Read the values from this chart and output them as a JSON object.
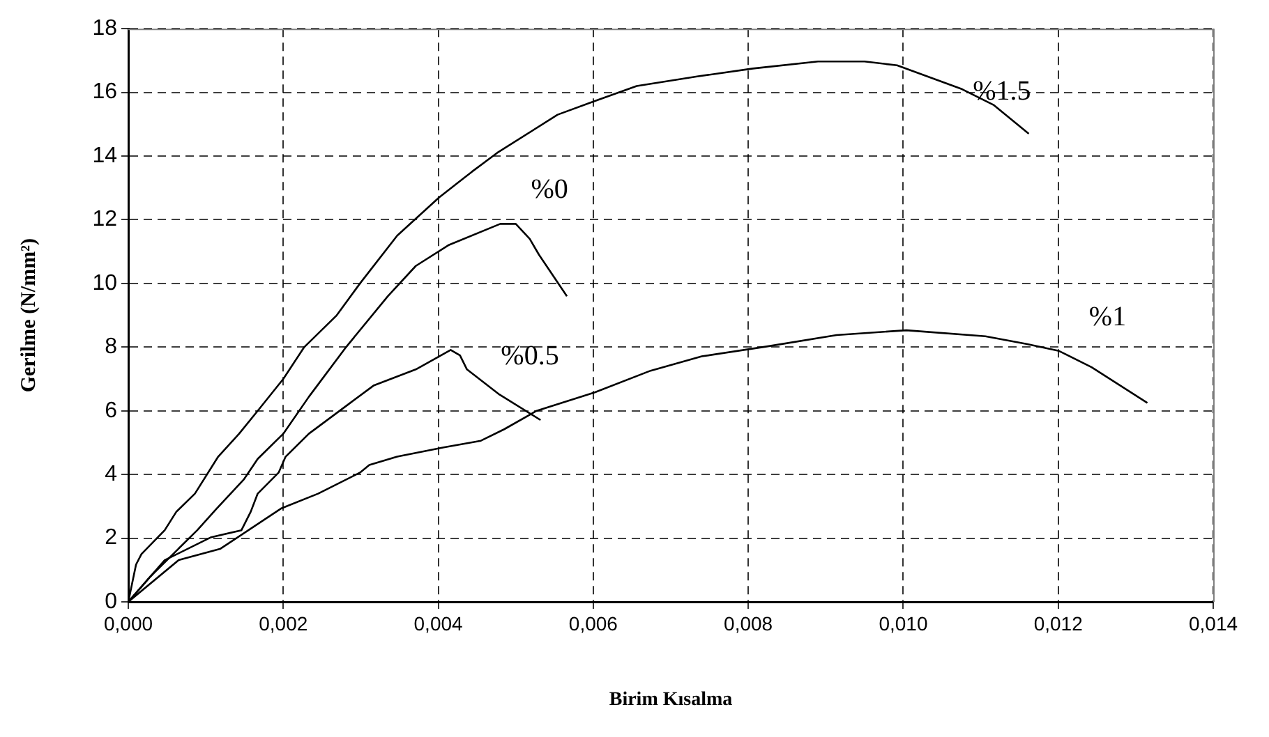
{
  "chart_data": {
    "type": "line",
    "xlabel": "Birim Kısalma",
    "ylabel": "Gerilme (N/mm²)",
    "xlim": [
      0,
      0.014
    ],
    "ylim": [
      0,
      18
    ],
    "xticks": [
      {
        "value": 0,
        "label": "0,000"
      },
      {
        "value": 0.002,
        "label": "0,002"
      },
      {
        "value": 0.004,
        "label": "0,004"
      },
      {
        "value": 0.006,
        "label": "0,006"
      },
      {
        "value": 0.008,
        "label": "0,008"
      },
      {
        "value": 0.01,
        "label": "0,010"
      },
      {
        "value": 0.012,
        "label": "0,012"
      },
      {
        "value": 0.014,
        "label": "0,014"
      }
    ],
    "yticks": [
      0,
      2,
      4,
      6,
      8,
      10,
      12,
      14,
      16,
      18
    ],
    "grid": true,
    "legend": false,
    "marker": "none",
    "line_style": "solid",
    "series": [
      {
        "name": "%1.5",
        "color": "#000000",
        "x": [
          0,
          0.0001,
          0.00017,
          0.00047,
          0.00062,
          0.00086,
          0.00116,
          0.00143,
          0.00167,
          0.002,
          0.00227,
          0.00269,
          0.00299,
          0.00347,
          0.00401,
          0.00443,
          0.00476,
          0.00554,
          0.00599,
          0.00656,
          0.00734,
          0.00806,
          0.0089,
          0.0095,
          0.00992,
          0.01076,
          0.01117,
          0.01162
        ],
        "values": [
          0,
          1.17,
          1.5,
          2.25,
          2.83,
          3.4,
          4.56,
          5.28,
          6.0,
          7.0,
          8.0,
          9.0,
          10.0,
          11.5,
          12.7,
          13.5,
          14.1,
          15.3,
          15.7,
          16.2,
          16.5,
          16.75,
          16.97,
          16.97,
          16.85,
          16.1,
          15.6,
          14.7
        ]
      },
      {
        "name": "%0",
        "color": "#000000",
        "x": [
          0,
          0.00029,
          0.00059,
          0.00089,
          0.00113,
          0.00149,
          0.00167,
          0.002,
          0.00233,
          0.00281,
          0.00335,
          0.00371,
          0.00413,
          0.0048,
          0.005,
          0.00518,
          0.0053,
          0.00566
        ],
        "values": [
          0,
          0.81,
          1.53,
          2.25,
          2.9,
          3.84,
          4.49,
          5.28,
          6.44,
          8.0,
          9.6,
          10.55,
          11.2,
          11.87,
          11.87,
          11.4,
          10.9,
          9.6
        ]
      },
      {
        "name": "%0.5",
        "color": "#000000",
        "x": [
          0,
          0.00047,
          0.00107,
          0.00146,
          0.00158,
          0.00167,
          0.00194,
          0.00203,
          0.00233,
          0.00281,
          0.00317,
          0.00371,
          0.00416,
          0.00428,
          0.00437,
          0.00479,
          0.00532
        ],
        "values": [
          0,
          1.31,
          2.03,
          2.25,
          2.83,
          3.4,
          4.06,
          4.56,
          5.28,
          6.15,
          6.8,
          7.3,
          7.91,
          7.74,
          7.3,
          6.51,
          5.71
        ]
      },
      {
        "name": "%1",
        "color": "#000000",
        "x": [
          0,
          0.00065,
          0.00119,
          0.00155,
          0.00197,
          0.00245,
          0.00299,
          0.00311,
          0.00347,
          0.00407,
          0.00455,
          0.00485,
          0.00527,
          0.00602,
          0.00674,
          0.0074,
          0.00824,
          0.00914,
          0.01004,
          0.01106,
          0.01159,
          0.01201,
          0.01243,
          0.01315
        ],
        "values": [
          0,
          1.31,
          1.67,
          2.25,
          2.93,
          3.4,
          4.06,
          4.3,
          4.56,
          4.85,
          5.06,
          5.42,
          6.0,
          6.58,
          7.26,
          7.71,
          8.02,
          8.38,
          8.53,
          8.34,
          8.1,
          7.88,
          7.37,
          6.25
        ]
      }
    ]
  }
}
